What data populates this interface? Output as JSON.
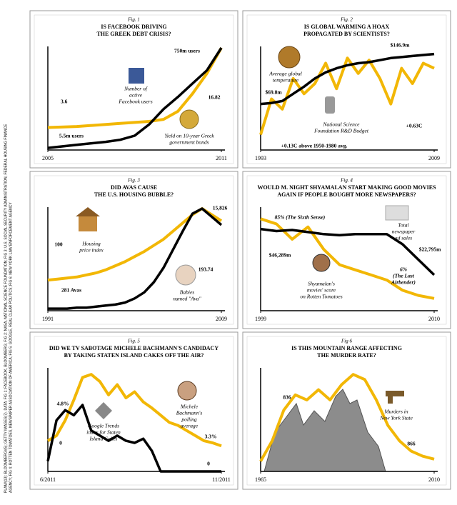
{
  "source": [
    "PLAM/(13): BLOOMBERG/(5); GETTY IMAGES(7). DATA: FIG 1: FACEBOOK, BLOOMBERG; FIG 2: NASA, NATIONAL SCIENCE FOUNDATION; FIG 3: U.S. SOCIAL SECURITY ADMINISTRATION, FEDERAL HOUSING FINANCE",
    "AGENCY; FIG 4: ROTTEN TOMATOES, NEWSPAPER ASSOCIATION OF AMERICA; FIG 5: GOOGLE, REAL CLEAR POLITICS; FIG 6: NEW YORK LAW ENFORCEMENT AGENCY"
  ],
  "chart_data": [
    {
      "type": "line",
      "fig": "Fig. 1",
      "title": [
        "IS FACEBOOK DRIVING",
        "THE GREEK DEBT CRISIS?"
      ],
      "x": [
        2005,
        2006,
        2007,
        2007.5,
        2008,
        2008.5,
        2009,
        2009.5,
        2010,
        2010.5,
        2011
      ],
      "xlim": [
        2005,
        2011
      ],
      "xticks": [
        2005,
        2011
      ],
      "ylim": [
        0,
        100
      ],
      "series": [
        {
          "color": "#f2b705",
          "values": [
            22,
            23,
            25,
            26,
            27,
            28,
            30,
            38,
            55,
            75,
            100
          ]
        },
        {
          "color": "#000000",
          "values": [
            2,
            5,
            8,
            10,
            14,
            25,
            40,
            52,
            65,
            78,
            100
          ]
        }
      ],
      "annotations": [
        [
          "750m users"
        ],
        [
          "3.6"
        ],
        [
          "5.5m users"
        ],
        [
          "Number of",
          "active",
          "Facebook users"
        ],
        [
          "16.82"
        ],
        [
          "Yield on 10-year Greek",
          "government bonds"
        ]
      ]
    },
    {
      "type": "line",
      "fig": "Fig. 2",
      "title": [
        "IS GLOBAL WARMING A HOAX",
        "PROPAGATED BY SCIENTISTS?"
      ],
      "x": [
        1993,
        1994,
        1995,
        1996,
        1997,
        1998,
        1999,
        2000,
        2001,
        2002,
        2003,
        2004,
        2005,
        2006,
        2007,
        2008,
        2009
      ],
      "xlim": [
        1993,
        2009
      ],
      "xticks": [
        1993,
        2009
      ],
      "ylim": [
        0,
        100
      ],
      "series": [
        {
          "color": "#f2b705",
          "values": [
            15,
            50,
            40,
            70,
            55,
            65,
            85,
            60,
            90,
            75,
            88,
            70,
            45,
            80,
            65,
            85,
            80
          ]
        },
        {
          "color": "#000000",
          "values": [
            45,
            46,
            48,
            55,
            62,
            70,
            76,
            80,
            83,
            85,
            86,
            88,
            90,
            91,
            92,
            93,
            94
          ]
        }
      ],
      "annotations": [
        [
          "$146.9m"
        ],
        [
          "Average global",
          "temperature"
        ],
        [
          "$69.8m"
        ],
        [
          "National Science",
          "Foundation R&D Budget"
        ],
        [
          "+0.63C"
        ],
        [
          "+0.13C above 1950-1980 avg."
        ]
      ]
    },
    {
      "type": "line",
      "fig": "Fig. 3",
      "title": [
        "DID AVAS CAUSE",
        "THE U.S. HOUSING BUBBLE?"
      ],
      "x": [
        1991,
        1992,
        1993,
        1994,
        1995,
        1996,
        1997,
        1998,
        1999,
        2000,
        2001,
        2002,
        2003,
        2004,
        2005,
        2006,
        2007,
        2008,
        2009
      ],
      "xlim": [
        1991,
        2009
      ],
      "xticks": [
        1991,
        2009
      ],
      "ylim": [
        0,
        100
      ],
      "series": [
        {
          "color": "#f2b705",
          "values": [
            30,
            31,
            32,
            33,
            35,
            37,
            40,
            44,
            48,
            53,
            58,
            64,
            70,
            78,
            86,
            94,
            100,
            94,
            88
          ]
        },
        {
          "color": "#000000",
          "values": [
            2,
            2,
            2,
            3,
            3,
            4,
            5,
            6,
            8,
            12,
            18,
            28,
            42,
            60,
            78,
            95,
            100,
            92,
            84
          ]
        }
      ],
      "annotations": [
        [
          "15,826"
        ],
        [
          "100"
        ],
        [
          "Housing",
          "price index"
        ],
        [
          "193.74"
        ],
        [
          "281 Avas"
        ],
        [
          "Babies",
          "named \"Ava\""
        ]
      ]
    },
    {
      "type": "line",
      "fig": "Fig. 4",
      "title": [
        "WOULD M. NIGHT SHYAMALAN START MAKING GOOD MOVIES",
        "AGAIN IF PEOPLE BOUGHT MORE NEWSPAPERS?"
      ],
      "x": [
        1999,
        2000,
        2001,
        2002,
        2003,
        2004,
        2005,
        2006,
        2007,
        2008,
        2009,
        2010
      ],
      "xlim": [
        1999,
        2010
      ],
      "xticks": [
        1999,
        2010
      ],
      "ylim": [
        0,
        100
      ],
      "series": [
        {
          "color": "#f2b705",
          "values": [
            90,
            85,
            70,
            82,
            60,
            45,
            40,
            35,
            30,
            20,
            15,
            12
          ]
        },
        {
          "color": "#000000",
          "values": [
            80,
            78,
            79,
            77,
            75,
            74,
            75,
            75,
            75,
            65,
            50,
            35
          ]
        }
      ],
      "annotations": [
        [
          "85% (The Sixth Sense)"
        ],
        [
          "Total",
          "newspaper",
          "ad sales"
        ],
        [
          "$46,289m"
        ],
        [
          "$22,795m"
        ],
        [
          "6%",
          "(The Last",
          "Airbender)"
        ],
        [
          "Shyamalan's",
          "movies' score",
          "on Rotten Tomatoes"
        ]
      ]
    },
    {
      "type": "line",
      "fig": "Fig. 5",
      "title": [
        "DID WE TV SABOTAGE MICHELE BACHMANN'S CANDIDACY",
        "BY TAKING STATEN ISLAND CAKES OFF THE AIR?"
      ],
      "x": [
        6,
        6.25,
        6.5,
        6.75,
        7,
        7.25,
        7.5,
        7.75,
        8,
        8.25,
        8.5,
        8.75,
        9,
        9.25,
        9.5,
        9.75,
        10,
        10.25,
        10.5,
        10.75,
        11
      ],
      "xlim": [
        6,
        11
      ],
      "xticks": [
        {
          "value": 6,
          "label": "6/2011"
        },
        {
          "value": 11,
          "label": "11/2011"
        }
      ],
      "ylim": [
        0,
        100
      ],
      "series": [
        {
          "color": "#f2b705",
          "values": [
            30,
            35,
            50,
            70,
            92,
            95,
            88,
            75,
            85,
            72,
            78,
            68,
            62,
            55,
            48,
            45,
            40,
            35,
            30,
            28,
            25
          ]
        },
        {
          "color": "#000000",
          "values": [
            10,
            50,
            60,
            55,
            65,
            40,
            35,
            30,
            35,
            30,
            28,
            32,
            20,
            0,
            0,
            0,
            0,
            0,
            0,
            0,
            0
          ]
        }
      ],
      "annotations": [
        [
          "4.8%"
        ],
        [
          "Google Trends",
          "index for Staten",
          "Island Cakes"
        ],
        [
          "Michele",
          "Bachmann's",
          "polling",
          "average"
        ],
        [
          "3.3%"
        ],
        [
          "0"
        ],
        [
          "0"
        ]
      ]
    },
    {
      "type": "line",
      "fig": "Fig 6",
      "title": [
        "IS THIS MOUNTAIN RANGE AFFECTING",
        "THE MURDER RATE?"
      ],
      "x": [
        1965,
        1968,
        1971,
        1974,
        1977,
        1980,
        1983,
        1986,
        1989,
        1992,
        1995,
        1998,
        2001,
        2004,
        2007,
        2010
      ],
      "xlim": [
        1965,
        2010
      ],
      "xticks": [
        1965,
        2010
      ],
      "ylim": [
        0,
        100
      ],
      "series": [
        {
          "color": "#f2b705",
          "values": [
            10,
            30,
            60,
            75,
            70,
            80,
            70,
            85,
            95,
            90,
            70,
            45,
            30,
            20,
            15,
            12
          ]
        }
      ],
      "annotations": [
        [
          "836"
        ],
        [
          "Murders in",
          "New York State"
        ],
        [
          "866"
        ]
      ]
    }
  ]
}
